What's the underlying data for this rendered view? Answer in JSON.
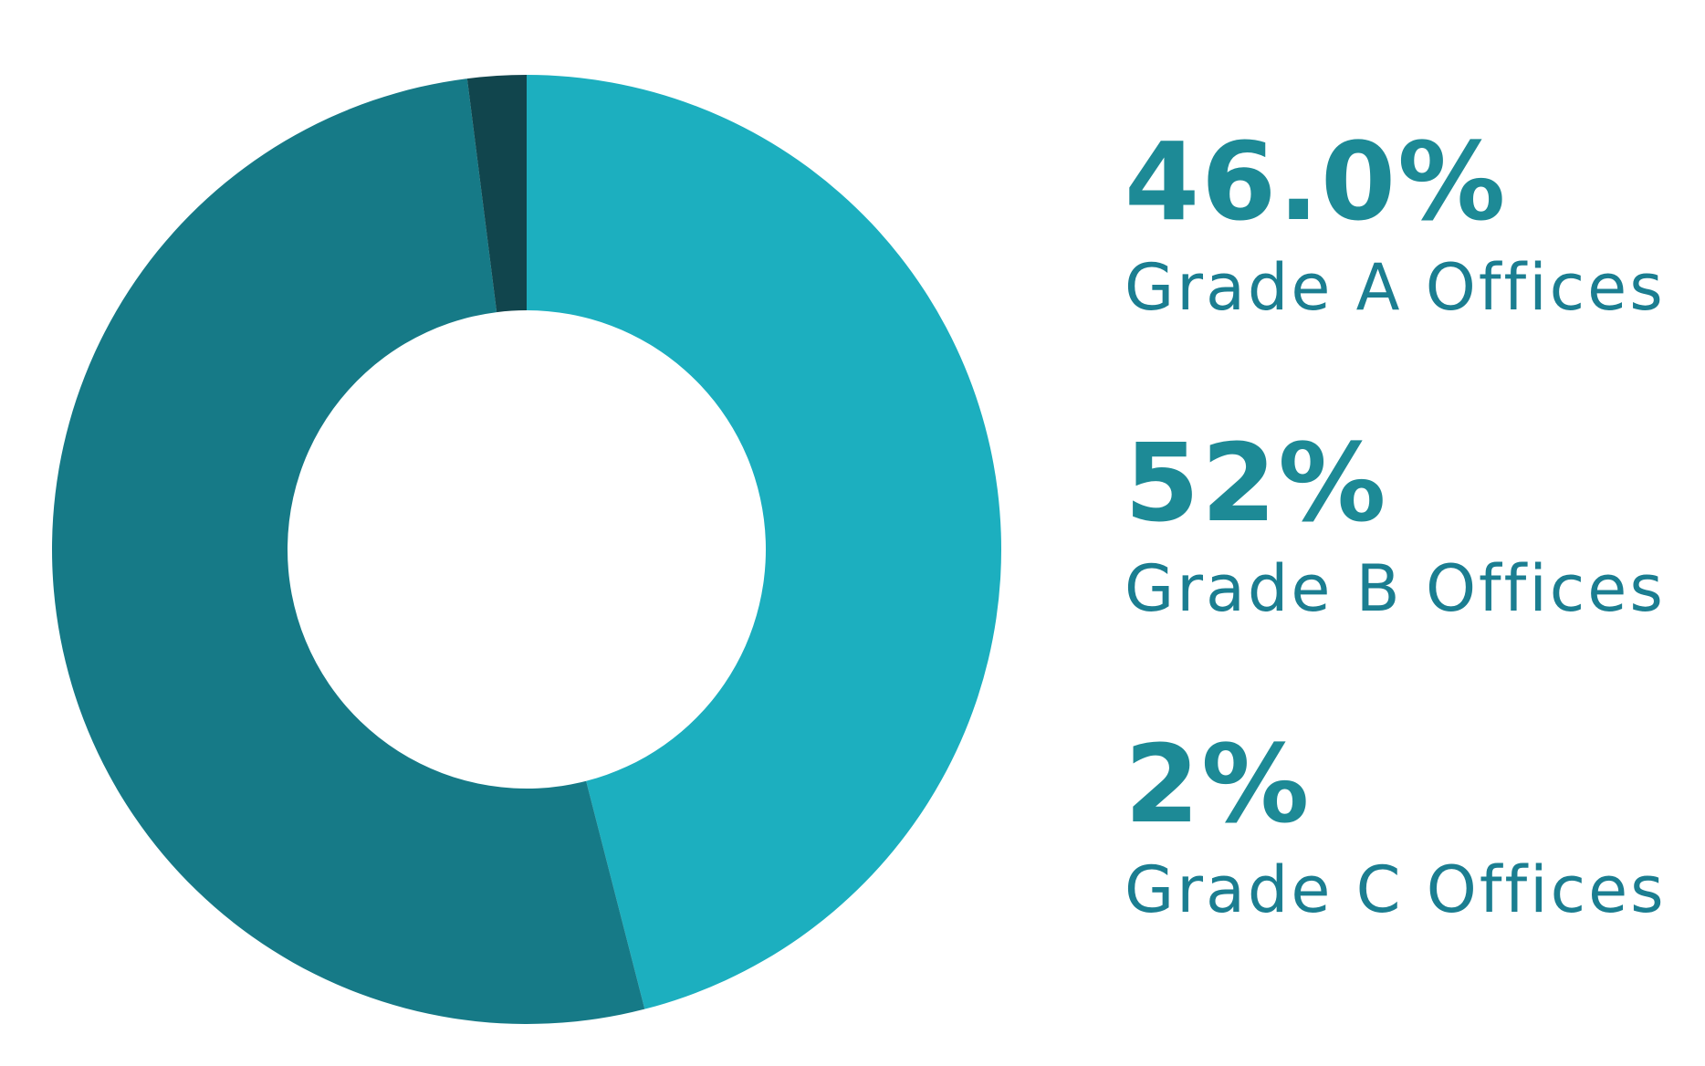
{
  "chart_data": {
    "type": "pie",
    "subtype": "donut",
    "categories": [
      "Grade A Offices",
      "Grade B Offices",
      "Grade C Offices"
    ],
    "values": [
      46.0,
      52,
      2
    ],
    "value_labels": [
      "46.0%",
      "52%",
      "2%"
    ],
    "colors": [
      "#1cafbf",
      "#167a87",
      "#11454d"
    ],
    "legend_placement": "right"
  }
}
